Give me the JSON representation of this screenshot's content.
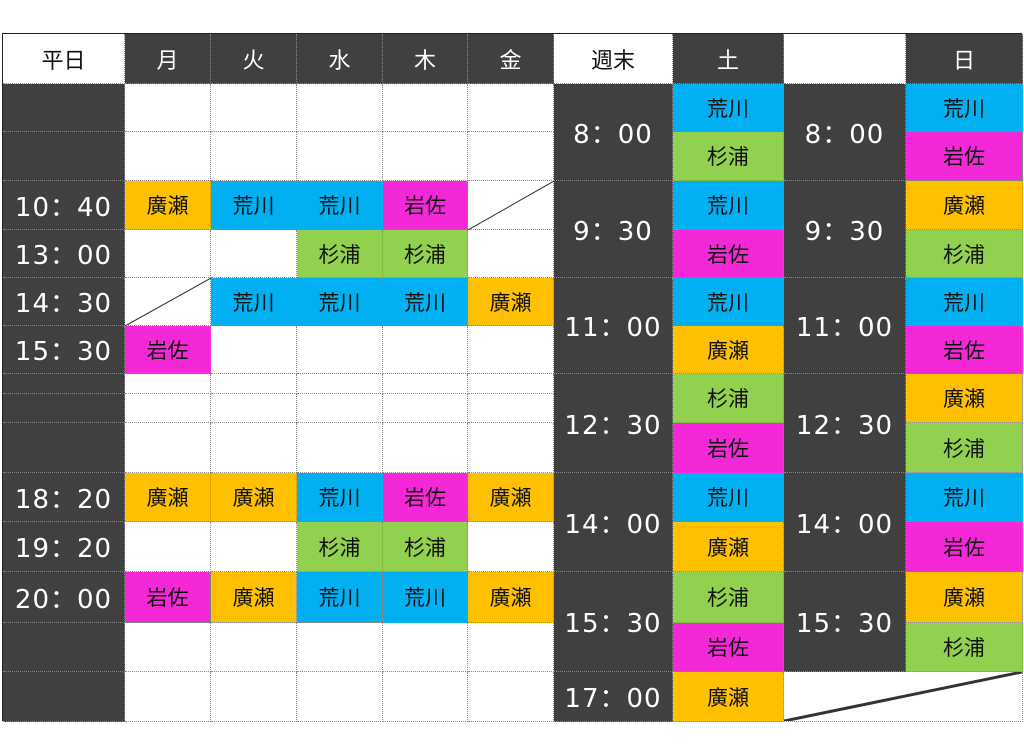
{
  "colors": {
    "荒川": "#00b0f0",
    "杉浦": "#92d050",
    "岩佐": "#f528d8",
    "廣瀬": "#ffc000",
    "dark": "#404040"
  },
  "weekday": {
    "header": "平日",
    "days": [
      "月",
      "火",
      "水",
      "木",
      "金"
    ],
    "rows": [
      {
        "time": "",
        "cells": [
          "",
          "",
          "",
          "",
          ""
        ]
      },
      {
        "time": "",
        "cells": [
          "",
          "",
          "",
          "",
          ""
        ]
      },
      {
        "time": "10：40",
        "cells": [
          "廣瀬",
          "荒川",
          "荒川",
          "岩佐",
          "/"
        ]
      },
      {
        "time": "13：00",
        "cells": [
          "",
          "",
          "杉浦",
          "杉浦",
          ""
        ]
      },
      {
        "time": "14：30",
        "cells": [
          "/",
          "荒川",
          "荒川",
          "荒川",
          "廣瀬"
        ]
      },
      {
        "time": "15：30",
        "cells": [
          "岩佐",
          "",
          "",
          "",
          ""
        ]
      },
      {
        "time": "",
        "cells": [
          "",
          "",
          "",
          "",
          ""
        ]
      },
      {
        "time": "",
        "cells": [
          "",
          "",
          "",
          "",
          ""
        ]
      },
      {
        "time": "",
        "cells": [
          "",
          "",
          "",
          "",
          ""
        ]
      },
      {
        "time": "18：20",
        "cells": [
          "廣瀬",
          "廣瀬",
          "荒川",
          "岩佐",
          "廣瀬"
        ]
      },
      {
        "time": "19：20",
        "cells": [
          "",
          "",
          "杉浦",
          "杉浦",
          ""
        ]
      },
      {
        "time": "20：00",
        "cells": [
          "岩佐",
          "廣瀬",
          "荒川",
          "荒川",
          "廣瀬"
        ]
      },
      {
        "time": "",
        "cells": [
          "",
          "",
          "",
          "",
          ""
        ]
      },
      {
        "time": "",
        "cells": [
          "",
          "",
          "",
          "",
          ""
        ]
      }
    ]
  },
  "weekend": {
    "header": "週末",
    "sat_label": "土",
    "sun_label": "日",
    "sat_slots": [
      {
        "time": "8：00",
        "names": [
          "荒川",
          "杉浦"
        ]
      },
      {
        "time": "9：30",
        "names": [
          "荒川",
          "岩佐"
        ]
      },
      {
        "time": "11：00",
        "names": [
          "荒川",
          "廣瀬"
        ]
      },
      {
        "time": "12：30",
        "names": [
          "杉浦",
          "岩佐"
        ]
      },
      {
        "time": "14：00",
        "names": [
          "荒川",
          "廣瀬"
        ]
      },
      {
        "time": "15：30",
        "names": [
          "杉浦",
          "岩佐"
        ]
      },
      {
        "time": "17：00",
        "names": [
          "廣瀬"
        ]
      }
    ],
    "sun_slots": [
      {
        "time": "8：00",
        "names": [
          "荒川",
          "岩佐"
        ]
      },
      {
        "time": "9：30",
        "names": [
          "廣瀬",
          "杉浦"
        ]
      },
      {
        "time": "11：00",
        "names": [
          "荒川",
          "岩佐"
        ]
      },
      {
        "time": "12：30",
        "names": [
          "廣瀬",
          "杉浦"
        ]
      },
      {
        "time": "14：00",
        "names": [
          "荒川",
          "岩佐"
        ]
      },
      {
        "time": "15：30",
        "names": [
          "廣瀬",
          "杉浦"
        ]
      }
    ]
  }
}
